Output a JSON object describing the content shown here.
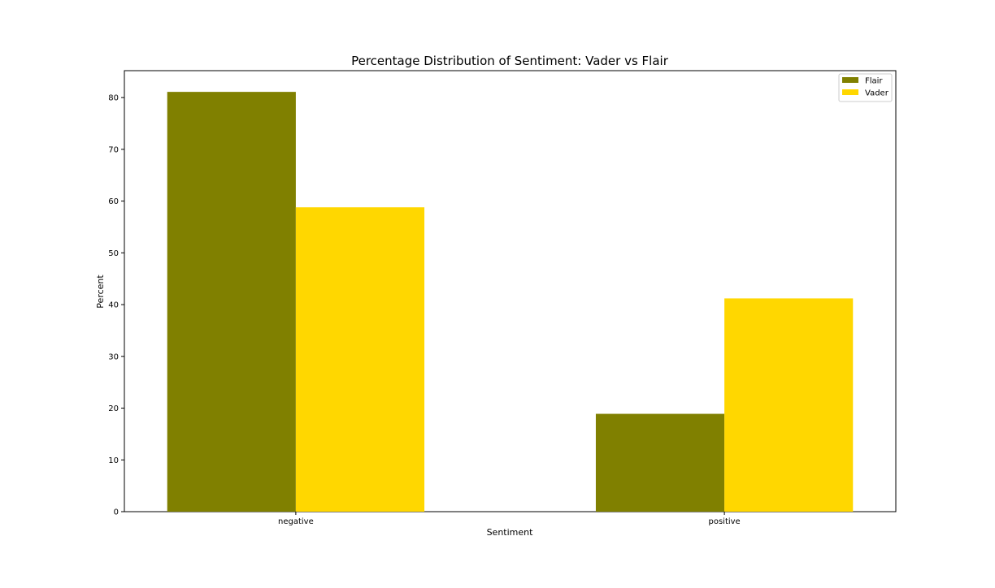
{
  "chart_data": {
    "type": "bar",
    "title": "Percentage Distribution of Sentiment: Vader vs Flair",
    "xlabel": "Sentiment",
    "ylabel": "Percent",
    "categories": [
      "negative",
      "positive"
    ],
    "series": [
      {
        "name": "Flair",
        "color": "#808000",
        "values": [
          81.1,
          18.9
        ]
      },
      {
        "name": "Vader",
        "color": "#FFD700",
        "values": [
          58.8,
          41.2
        ]
      }
    ],
    "ylim": [
      0,
      85.2
    ],
    "yticks": [
      0,
      10,
      20,
      30,
      40,
      50,
      60,
      70,
      80
    ],
    "grid": false,
    "legend": {
      "position": "top-right"
    }
  }
}
